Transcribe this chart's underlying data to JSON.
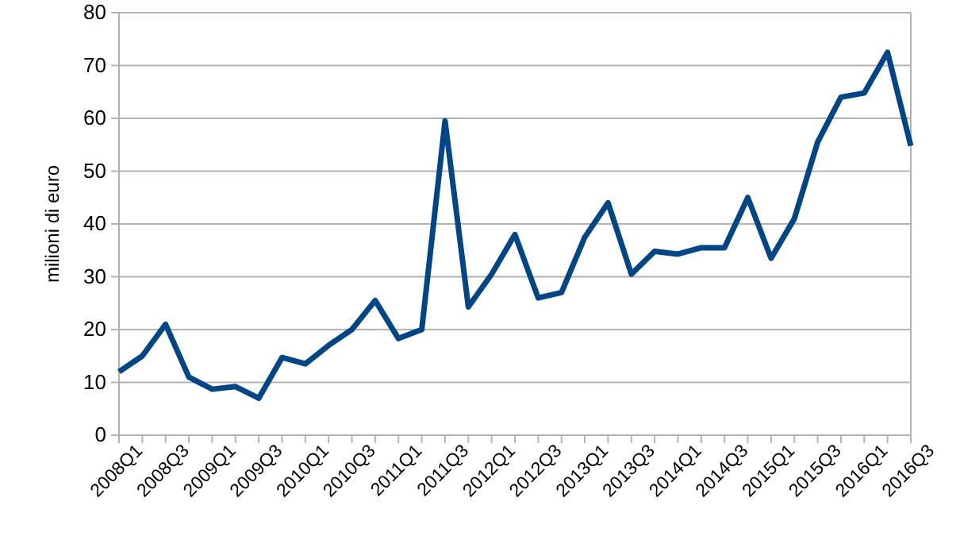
{
  "chart_data": {
    "type": "line",
    "ylabel": "milioni di euro",
    "categories": [
      "2008Q1",
      null,
      "2008Q3",
      null,
      "2009Q1",
      null,
      "2009Q3",
      null,
      "2010Q1",
      null,
      "2010Q3",
      null,
      "2011Q1",
      null,
      "2011Q3",
      null,
      "2012Q1",
      null,
      "2012Q3",
      null,
      "2013Q1",
      null,
      "2013Q3",
      null,
      "2014Q1",
      null,
      "2014Q3",
      null,
      "2015Q1",
      null,
      "2015Q3",
      null,
      "2016Q1",
      null,
      "2016Q3"
    ],
    "series": [
      {
        "color": "#004586",
        "values": [
          12,
          15,
          21,
          11,
          8.7,
          9.2,
          7,
          14.7,
          13.5,
          17,
          20,
          25.5,
          18.3,
          20,
          59.5,
          24.3,
          30.5,
          38,
          26,
          27,
          37.5,
          44,
          30.5,
          34.8,
          34.3,
          35.5,
          35.5,
          45,
          33.5,
          41,
          55.5,
          64,
          64.8,
          72.5,
          54.8
        ]
      }
    ],
    "ylim": [
      0,
      80
    ],
    "yticks": [
      0,
      10,
      20,
      30,
      40,
      50,
      60,
      70,
      80
    ],
    "grid": "y",
    "marker": "none",
    "line_style": "solid"
  }
}
